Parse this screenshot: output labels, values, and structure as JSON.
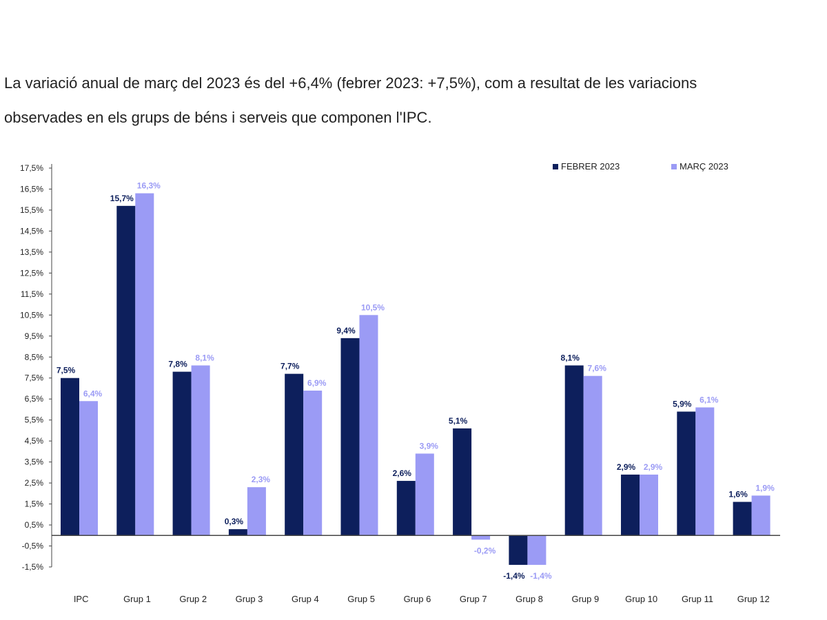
{
  "intro": {
    "line1": "La variació anual de març del 2023 és del +6,4% (febrer 2023: +7,5%), com a resultat de les variacions",
    "line2": "observades en els grups de béns i serveis que componen l'IPC."
  },
  "colors": {
    "febrer": "#0d1f5c",
    "marc": "#9b9bf5",
    "axis": "#444444",
    "text": "#222222"
  },
  "chart_data": {
    "type": "bar",
    "categories": [
      "IPC",
      "Grup 1",
      "Grup 2",
      "Grup 3",
      "Grup 4",
      "Grup 5",
      "Grup 6",
      "Grup 7",
      "Grup 8",
      "Grup 9",
      "Grup 10",
      "Grup 11",
      "Grup 12"
    ],
    "series": [
      {
        "name": "FEBRER 2023",
        "values": [
          7.5,
          15.7,
          7.8,
          0.3,
          7.7,
          9.4,
          2.6,
          5.1,
          -1.4,
          8.1,
          2.9,
          5.9,
          1.6
        ],
        "labels": [
          "7,5%",
          "15,7%",
          "7,8%",
          "0,3%",
          "7,7%",
          "9,4%",
          "2,6%",
          "5,1%",
          "-1,4%",
          "8,1%",
          "2,9%",
          "5,9%",
          "1,6%"
        ]
      },
      {
        "name": "MARÇ 2023",
        "values": [
          6.4,
          16.3,
          8.1,
          2.3,
          6.9,
          10.5,
          3.9,
          -0.2,
          -1.4,
          7.6,
          2.9,
          6.1,
          1.9
        ],
        "labels": [
          "6,4%",
          "16,3%",
          "8,1%",
          "2,3%",
          "6,9%",
          "10,5%",
          "3,9%",
          "-0,2%",
          "-1,4%",
          "7,6%",
          "2,9%",
          "6,1%",
          "1,9%"
        ]
      }
    ],
    "yticks": [
      17.5,
      16.5,
      15.5,
      14.5,
      13.5,
      12.5,
      11.5,
      10.5,
      9.5,
      8.5,
      7.5,
      6.5,
      5.5,
      4.5,
      3.5,
      2.5,
      1.5,
      0.5,
      -0.5,
      -1.5
    ],
    "ytick_labels": [
      "17,5%",
      "16,5%",
      "15,5%",
      "14,5%",
      "13,5%",
      "12,5%",
      "11,5%",
      "10,5%",
      "9,5%",
      "8,5%",
      "7,5%",
      "6,5%",
      "5,5%",
      "4,5%",
      "3,5%",
      "2,5%",
      "1,5%",
      "0,5%",
      "-0,5%",
      "-1,5%"
    ],
    "ylim": [
      -1.5,
      17.5
    ],
    "legend_position": "top-right",
    "grid": false
  }
}
